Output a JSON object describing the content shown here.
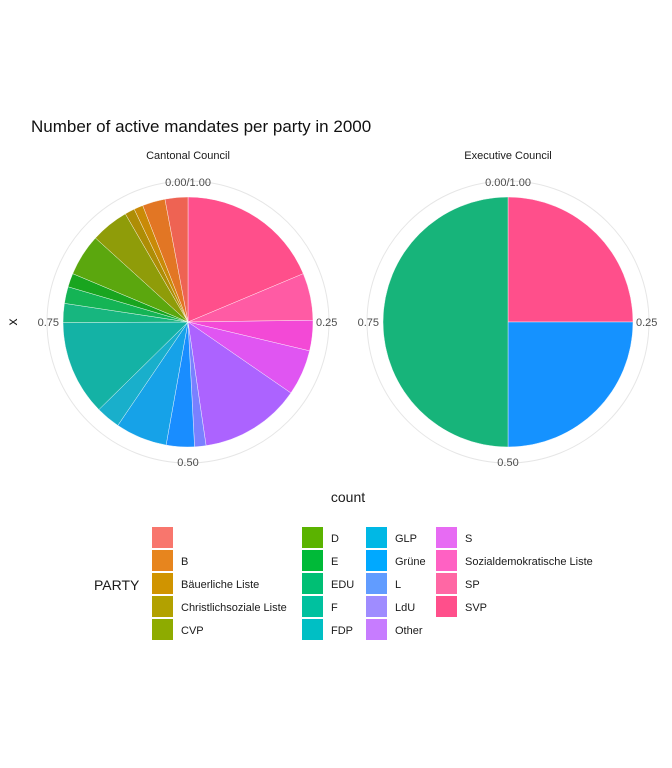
{
  "chart_data": {
    "type": "pie",
    "title": "Number of active mandates per party in 2000",
    "xlabel": "count",
    "ylabel": "x",
    "theta_ticks": [
      "0.00/1.00",
      "0.25",
      "0.50",
      "0.75"
    ],
    "legend": {
      "title": "PARTY",
      "position": "bottom",
      "entries": [
        {
          "name": "",
          "color": "#F8766D"
        },
        {
          "name": "B",
          "color": "#E7851E"
        },
        {
          "name": "Bäuerliche Liste",
          "color": "#D09400"
        },
        {
          "name": "Christlichsoziale Liste",
          "color": "#B2A100"
        },
        {
          "name": "CVP",
          "color": "#8EAB00"
        },
        {
          "name": "D",
          "color": "#5BB300"
        },
        {
          "name": "E",
          "color": "#00BA38"
        },
        {
          "name": "EDU",
          "color": "#00BF74"
        },
        {
          "name": "F",
          "color": "#00C19F"
        },
        {
          "name": "FDP",
          "color": "#00BFC4"
        },
        {
          "name": "GLP",
          "color": "#00B8E5"
        },
        {
          "name": "Grüne",
          "color": "#00A9FF"
        },
        {
          "name": "L",
          "color": "#619CFF"
        },
        {
          "name": "LdU",
          "color": "#9F8CFF"
        },
        {
          "name": "Other",
          "color": "#C77CFF"
        },
        {
          "name": "S",
          "color": "#E76BF3"
        },
        {
          "name": "Sozialdemokratische Liste",
          "color": "#FF61C3"
        },
        {
          "name": "SP",
          "color": "#FF67A4"
        },
        {
          "name": "SVP",
          "color": "#FF4F8B"
        }
      ]
    },
    "panels": [
      {
        "name": "Cantonal Council",
        "slices": [
          {
            "party": "SVP",
            "value": 0.19,
            "color": "#FF4F8B"
          },
          {
            "party": "SP",
            "value": 0.062,
            "color": "#FF5BA4"
          },
          {
            "party": "Sozialdemokratische Liste",
            "value": 0.04,
            "color": "#F349D6"
          },
          {
            "party": "S",
            "value": 0.06,
            "color": "#E055F2"
          },
          {
            "party": "Other",
            "value": 0.133,
            "color": "#AC63FF"
          },
          {
            "party": "LdU",
            "value": 0.015,
            "color": "#7A80FF"
          },
          {
            "party": "L",
            "value": 0.037,
            "color": "#198DFF"
          },
          {
            "party": "Grüne",
            "value": 0.068,
            "color": "#16A2E8"
          },
          {
            "party": "GLP",
            "value": 0.032,
            "color": "#19AFCB"
          },
          {
            "party": "FDP",
            "value": 0.125,
            "color": "#14B2A5"
          },
          {
            "party": "F",
            "value": 0.025,
            "color": "#17B67F"
          },
          {
            "party": "EDU",
            "value": 0.022,
            "color": "#14B455"
          },
          {
            "party": "E",
            "value": 0.018,
            "color": "#19A51F"
          },
          {
            "party": "D",
            "value": 0.055,
            "color": "#5BA70E"
          },
          {
            "party": "CVP",
            "value": 0.05,
            "color": "#8F9C09"
          },
          {
            "party": "Christlichsoziale Liste",
            "value": 0.013,
            "color": "#AE8D05"
          },
          {
            "party": "Bäuerliche Liste",
            "value": 0.012,
            "color": "#C98A07"
          },
          {
            "party": "B",
            "value": 0.03,
            "color": "#E27624"
          },
          {
            "party": "",
            "value": 0.03,
            "color": "#EE6353"
          }
        ]
      },
      {
        "name": "Executive Council",
        "slices": [
          {
            "party": "SVP",
            "value": 0.25,
            "color": "#FF4F8B"
          },
          {
            "party": "FDP",
            "value": 0.25,
            "color": "#1592FF"
          },
          {
            "party": "F",
            "value": 0.5,
            "color": "#17B47A"
          }
        ]
      }
    ]
  }
}
